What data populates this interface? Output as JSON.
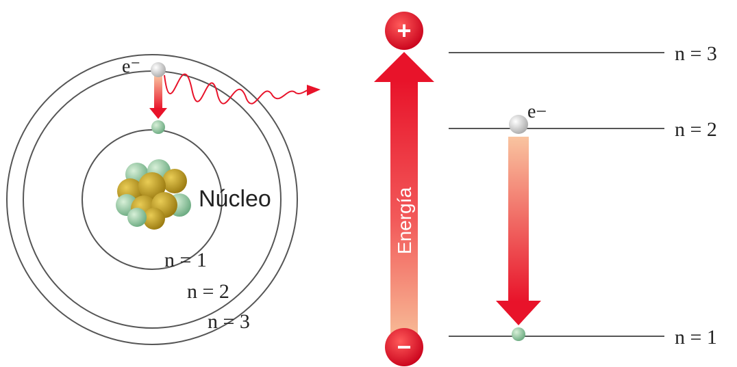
{
  "atom": {
    "electron_label": "e⁻",
    "nucleus_label": "Núcleo",
    "orbits": [
      "n = 1",
      "n = 2",
      "n = 3"
    ]
  },
  "energy_diagram": {
    "axis_label": "Energía",
    "plus": "+",
    "minus": "−",
    "electron_label": "e−",
    "levels": [
      "n = 3",
      "n = 2",
      "n = 1"
    ]
  }
}
